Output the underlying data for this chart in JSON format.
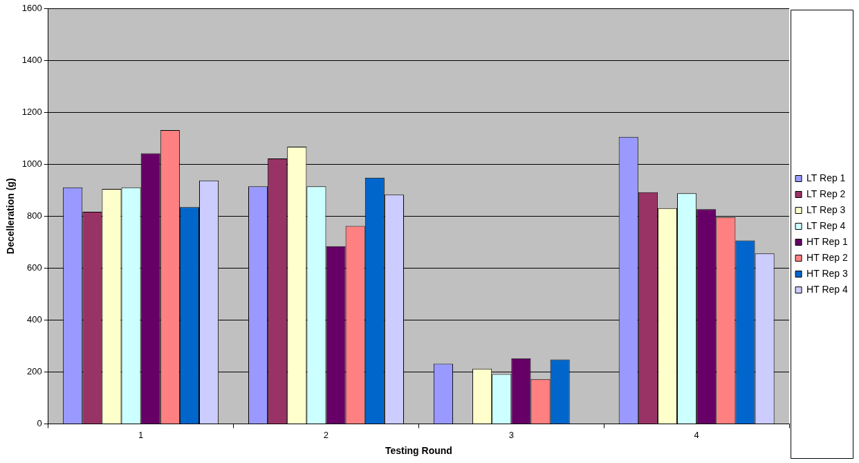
{
  "chart_data": {
    "type": "bar",
    "xlabel": "Testing Round",
    "ylabel": "Decelleration (g)",
    "categories": [
      "1",
      "2",
      "3",
      "4"
    ],
    "ylim": [
      0,
      1600
    ],
    "yticks": [
      0,
      200,
      400,
      600,
      800,
      1000,
      1200,
      1400,
      1600
    ],
    "grid": "y",
    "legend": "right",
    "series": [
      {
        "name": "LT Rep 1",
        "color": "#9999ff",
        "values": [
          911,
          915,
          232,
          1105
        ]
      },
      {
        "name": "LT Rep 2",
        "color": "#993366",
        "values": [
          817,
          1022,
          null,
          892
        ]
      },
      {
        "name": "LT Rep 3",
        "color": "#ffffcc",
        "values": [
          905,
          1067,
          213,
          831
        ]
      },
      {
        "name": "LT Rep 4",
        "color": "#ccffff",
        "values": [
          911,
          915,
          192,
          888
        ]
      },
      {
        "name": "HT Rep 1",
        "color": "#660066",
        "values": [
          1042,
          684,
          253,
          827
        ]
      },
      {
        "name": "HT Rep 2",
        "color": "#ff8080",
        "values": [
          1131,
          762,
          173,
          796
        ]
      },
      {
        "name": "HT Rep 3",
        "color": "#0066cc",
        "values": [
          835,
          948,
          248,
          706
        ]
      },
      {
        "name": "HT Rep 4",
        "color": "#ccccff",
        "values": [
          937,
          883,
          null,
          656
        ]
      }
    ]
  }
}
